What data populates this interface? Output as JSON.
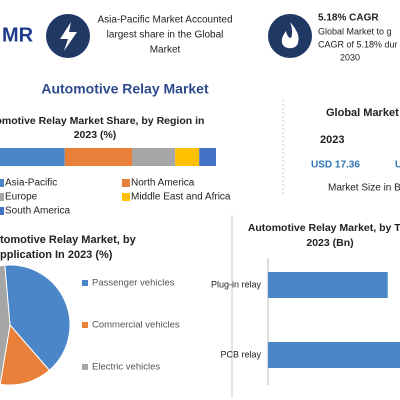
{
  "logo": "MR",
  "highlights": [
    {
      "lines": [
        "Asia-Pacific Market Accounted",
        "largest share in the Global",
        "Market"
      ]
    },
    {
      "title": "5.18% CAGR",
      "lines": [
        "Global Market to g",
        "CAGR of 5.18% dur",
        "2030"
      ]
    }
  ],
  "main_title": "Automotive Relay Market",
  "stats": {
    "title": "Global Market",
    "year": "2023",
    "value": "USD 17.36",
    "value2": "U",
    "caption": "Market Size in B"
  },
  "chart_data": [
    {
      "type": "stacked_bar",
      "title": [
        "utomotive Relay Market Share, by Region in",
        "2023 (%)"
      ],
      "xlim": [
        0,
        100
      ],
      "series": [
        {
          "name": "Asia-Pacific",
          "color": "#4a86c8",
          "values": [
            37
          ]
        },
        {
          "name": "North America",
          "color": "#e8803a",
          "values": [
            28
          ]
        },
        {
          "name": "Europe",
          "color": "#a6a6a6",
          "values": [
            18
          ]
        },
        {
          "name": "Middle East and Africa",
          "color": "#ffc000",
          "values": [
            10
          ]
        },
        {
          "name": "South America",
          "color": "#4472c4",
          "values": [
            7
          ]
        }
      ]
    },
    {
      "type": "pie",
      "title": [
        "tomotive Relay Market, by",
        "pplication In 2023 (%)"
      ],
      "categories": [
        "Passenger vehicles",
        "Commercial vehicles",
        "Electric vehicles"
      ],
      "values": [
        40,
        14,
        46
      ],
      "colors": [
        "#4a86c8",
        "#e8803a",
        "#a6a6a6"
      ]
    },
    {
      "type": "bar",
      "title": [
        "Automotive Relay Market, by Typ",
        "2023 (Bn)"
      ],
      "categories": [
        "Plug-in relay",
        "PCB relay"
      ],
      "values": [
        7,
        8.5
      ],
      "color": "#4a86c8",
      "xlim": [
        0,
        10
      ]
    }
  ]
}
